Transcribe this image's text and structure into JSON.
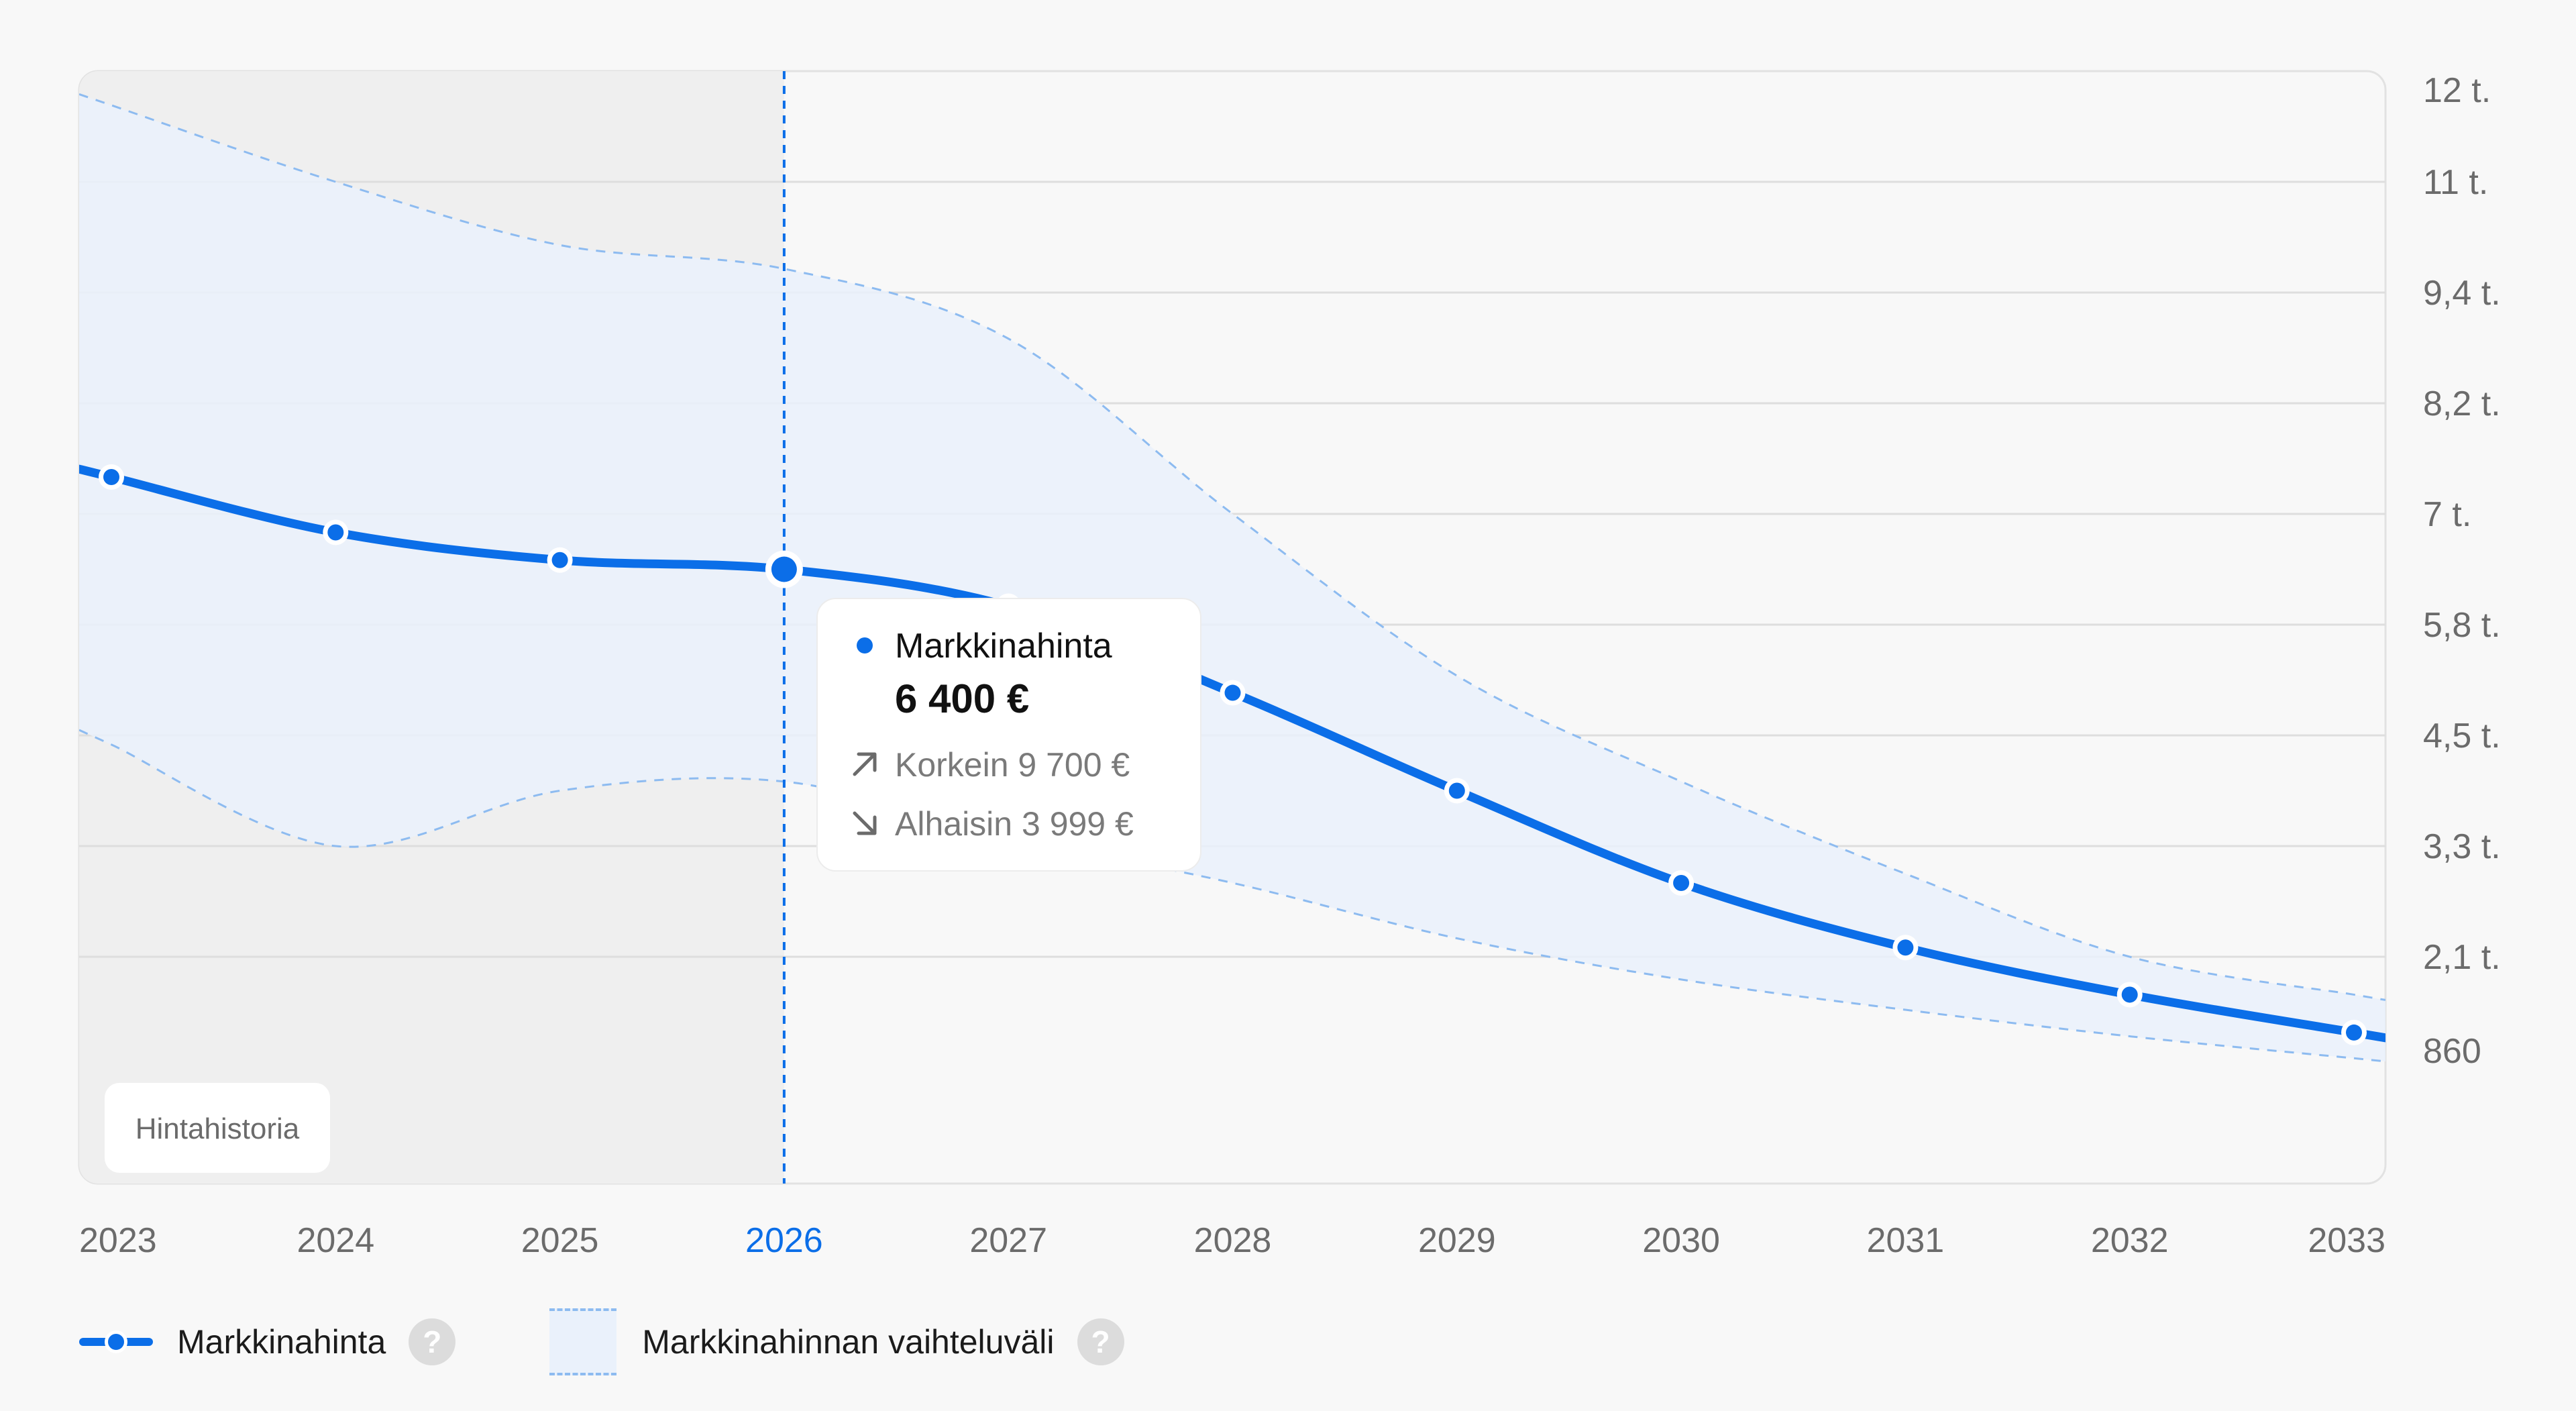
{
  "chart_data": {
    "type": "line",
    "categories": [
      "2023",
      "2024",
      "2025",
      "2026",
      "2027",
      "2028",
      "2029",
      "2030",
      "2031",
      "2032",
      "2033"
    ],
    "highlighted_category": "2026",
    "series": [
      {
        "name": "Markkinahinta",
        "color": "#0b6ee8",
        "values": [
          7400,
          6800,
          6500,
          6400,
          6000,
          5000,
          3900,
          2900,
          2200,
          1600,
          1100
        ]
      }
    ],
    "band": {
      "name": "Markkinahinnan vaihteluväli",
      "color": "#eaf1fb",
      "border_color": "#8dbbf0",
      "upper": [
        11800,
        10800,
        10000,
        9700,
        8900,
        7000,
        5200,
        4000,
        3000,
        2100,
        1600
      ],
      "lower": [
        4400,
        3300,
        3900,
        3999,
        3400,
        2900,
        2300,
        1800,
        1400,
        1050,
        760
      ]
    },
    "y_ticks": [
      {
        "value": 12000,
        "label": "12 t."
      },
      {
        "value": 10800,
        "label": "11 t."
      },
      {
        "value": 9400,
        "label": "9,4 t."
      },
      {
        "value": 8200,
        "label": "8,2 t."
      },
      {
        "value": 7000,
        "label": "7 t."
      },
      {
        "value": 5800,
        "label": "5,8 t."
      },
      {
        "value": 4500,
        "label": "4,5 t."
      },
      {
        "value": 3300,
        "label": "3,3 t."
      },
      {
        "value": 2100,
        "label": "2,1 t."
      },
      {
        "value": 860,
        "label": "860"
      }
    ],
    "history_label": "Hintahistoria",
    "tooltip": {
      "series_name": "Markkinahinta",
      "value": "6 400 €",
      "high_label": "Korkein",
      "high_value": "9 700 €",
      "low_label": "Alhaisin",
      "low_value": "3 999 €"
    },
    "legend": {
      "line_label": "Markkinahinta",
      "band_label": "Markkinahinnan vaihteluväli",
      "help_glyph": "?"
    },
    "colors": {
      "accent": "#0b6ee8",
      "history_shade": "#efefef",
      "axis_text": "#6b6b6b",
      "grid": "#dedede"
    }
  }
}
